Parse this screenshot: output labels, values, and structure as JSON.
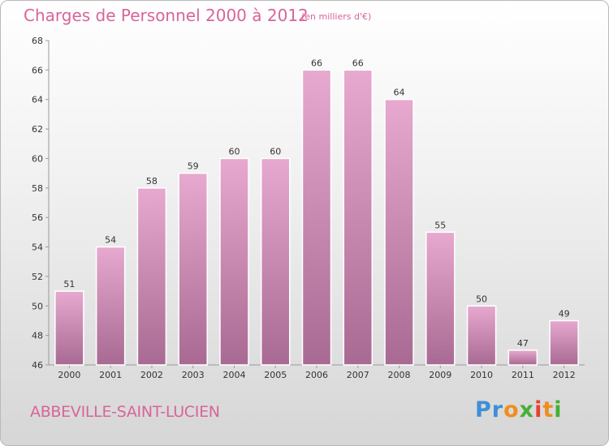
{
  "header": {
    "title": "Charges de Personnel 2000 à 2012",
    "subtitle": "(en milliers d'€)"
  },
  "footer": {
    "commune": "ABBEVILLE-SAINT-LUCIEN",
    "logo_text": "Proxiti"
  },
  "colors": {
    "title": "#d8649b",
    "bar_light": "#e7a9cf",
    "bar_dark": "#a86a92",
    "axis": "#999999"
  },
  "chart_data": {
    "type": "bar",
    "title": "Charges de Personnel 2000 à 2012",
    "subtitle": "(en milliers d'€)",
    "xlabel": "",
    "ylabel": "",
    "categories": [
      "2000",
      "2001",
      "2002",
      "2003",
      "2004",
      "2005",
      "2006",
      "2007",
      "2008",
      "2009",
      "2010",
      "2011",
      "2012"
    ],
    "values": [
      51,
      54,
      58,
      59,
      60,
      60,
      66,
      66,
      64,
      55,
      50,
      47,
      49
    ],
    "ylim": [
      46,
      68
    ],
    "yticks": [
      46,
      48,
      50,
      52,
      54,
      56,
      58,
      60,
      62,
      64,
      66,
      68
    ],
    "grid": false,
    "legend": "none"
  }
}
